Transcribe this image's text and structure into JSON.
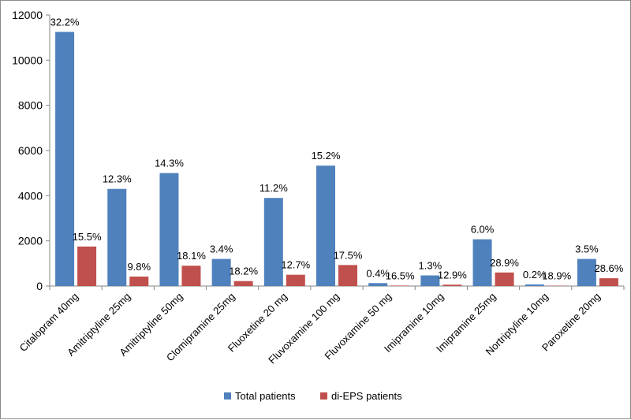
{
  "chart_data": {
    "type": "bar",
    "title": "",
    "xlabel": "",
    "ylabel": "",
    "ylim": [
      0,
      12000
    ],
    "yticks": [
      0,
      2000,
      4000,
      6000,
      8000,
      10000,
      12000
    ],
    "grid": false,
    "legend_position": "bottom",
    "categories": [
      "Citalopram 40mg",
      "Amitriptyline 25mg",
      "Amitriptyline 50mg",
      "Clomipramine 25mg",
      "Fluoxetine 20 mg",
      "Fluvoxamine 100 mg",
      "Fluvoxamine 50 mg",
      "Imipramine 10mg",
      "Imipramine 25mg",
      "Nortriptyline 10mg",
      "Paroxetine 20mg"
    ],
    "series": [
      {
        "name": "Total patients",
        "color": "#4f81bd",
        "values": [
          11250,
          4300,
          5000,
          1200,
          3900,
          5330,
          130,
          470,
          2070,
          70,
          1200
        ],
        "labels": [
          "32.2%",
          "12.3%",
          "14.3%",
          "3.4%",
          "11.2%",
          "15.2%",
          "0.4%",
          "1.3%",
          "6.0%",
          "0.2%",
          "3.5%"
        ]
      },
      {
        "name": "di-EPS patients",
        "color": "#c0504d",
        "values": [
          1750,
          420,
          900,
          220,
          500,
          930,
          20,
          60,
          600,
          15,
          345
        ],
        "labels": [
          "15.5%",
          "9.8%",
          "18.1%",
          "18.2%",
          "12.7%",
          "17.5%",
          "16.5%",
          "12.9%",
          "28.9%",
          "18.9%",
          "28.6%"
        ]
      }
    ]
  }
}
